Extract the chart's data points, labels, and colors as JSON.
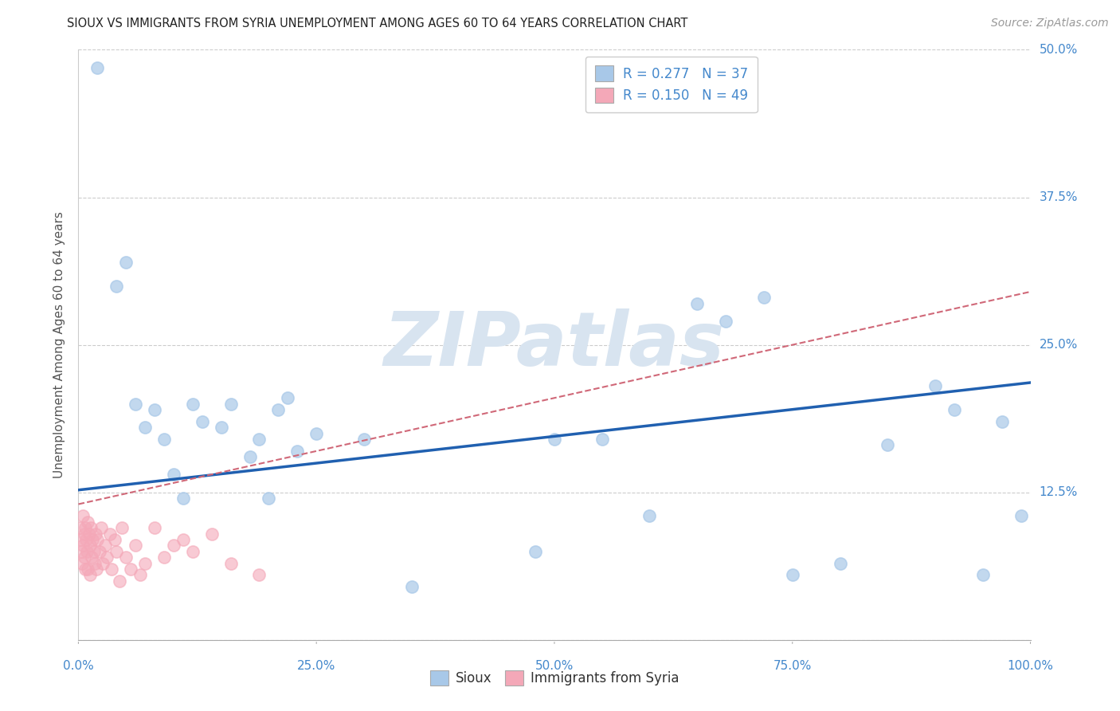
{
  "title": "SIOUX VS IMMIGRANTS FROM SYRIA UNEMPLOYMENT AMONG AGES 60 TO 64 YEARS CORRELATION CHART",
  "source": "Source: ZipAtlas.com",
  "ylabel": "Unemployment Among Ages 60 to 64 years",
  "sioux_R": 0.277,
  "sioux_N": 37,
  "syria_R": 0.15,
  "syria_N": 49,
  "sioux_color": "#a8c8e8",
  "syria_color": "#f4a8b8",
  "sioux_line_color": "#2060b0",
  "syria_line_color": "#d06878",
  "watermark_text": "ZIPatlas",
  "watermark_color": "#d8e4f0",
  "xlim": [
    0.0,
    1.0
  ],
  "ylim": [
    0.0,
    0.5
  ],
  "xticks": [
    0.0,
    0.25,
    0.5,
    0.75,
    1.0
  ],
  "yticks": [
    0.0,
    0.125,
    0.25,
    0.375,
    0.5
  ],
  "xtick_labels": [
    "0.0%",
    "25.0%",
    "50.0%",
    "75.0%",
    "100.0%"
  ],
  "ytick_labels": [
    "",
    "12.5%",
    "25.0%",
    "37.5%",
    "50.0%"
  ],
  "tick_color": "#4488cc",
  "sioux_x": [
    0.02,
    0.04,
    0.05,
    0.06,
    0.07,
    0.08,
    0.09,
    0.1,
    0.11,
    0.12,
    0.13,
    0.15,
    0.16,
    0.18,
    0.19,
    0.2,
    0.21,
    0.22,
    0.23,
    0.25,
    0.3,
    0.35,
    0.48,
    0.5,
    0.55,
    0.6,
    0.65,
    0.68,
    0.72,
    0.75,
    0.8,
    0.85,
    0.9,
    0.92,
    0.95,
    0.97,
    0.99
  ],
  "sioux_y": [
    0.485,
    0.3,
    0.32,
    0.2,
    0.18,
    0.195,
    0.17,
    0.14,
    0.12,
    0.2,
    0.185,
    0.18,
    0.2,
    0.155,
    0.17,
    0.12,
    0.195,
    0.205,
    0.16,
    0.175,
    0.17,
    0.045,
    0.075,
    0.17,
    0.17,
    0.105,
    0.285,
    0.27,
    0.29,
    0.055,
    0.065,
    0.165,
    0.215,
    0.195,
    0.055,
    0.185,
    0.105
  ],
  "syria_x": [
    0.001,
    0.002,
    0.003,
    0.004,
    0.005,
    0.005,
    0.006,
    0.006,
    0.007,
    0.007,
    0.008,
    0.009,
    0.01,
    0.01,
    0.011,
    0.012,
    0.012,
    0.013,
    0.014,
    0.015,
    0.016,
    0.017,
    0.018,
    0.019,
    0.02,
    0.022,
    0.024,
    0.026,
    0.028,
    0.03,
    0.033,
    0.035,
    0.038,
    0.04,
    0.043,
    0.046,
    0.05,
    0.055,
    0.06,
    0.065,
    0.07,
    0.08,
    0.09,
    0.1,
    0.11,
    0.12,
    0.14,
    0.16,
    0.19
  ],
  "syria_y": [
    0.095,
    0.085,
    0.075,
    0.065,
    0.105,
    0.08,
    0.09,
    0.07,
    0.095,
    0.06,
    0.085,
    0.075,
    0.1,
    0.06,
    0.09,
    0.08,
    0.055,
    0.095,
    0.07,
    0.085,
    0.075,
    0.065,
    0.09,
    0.06,
    0.085,
    0.075,
    0.095,
    0.065,
    0.08,
    0.07,
    0.09,
    0.06,
    0.085,
    0.075,
    0.05,
    0.095,
    0.07,
    0.06,
    0.08,
    0.055,
    0.065,
    0.095,
    0.07,
    0.08,
    0.085,
    0.075,
    0.09,
    0.065,
    0.055
  ],
  "sioux_line_x0": 0.0,
  "sioux_line_y0": 0.127,
  "sioux_line_x1": 1.0,
  "sioux_line_y1": 0.218,
  "syria_line_x0": 0.0,
  "syria_line_y0": 0.115,
  "syria_line_x1": 1.0,
  "syria_line_y1": 0.295
}
